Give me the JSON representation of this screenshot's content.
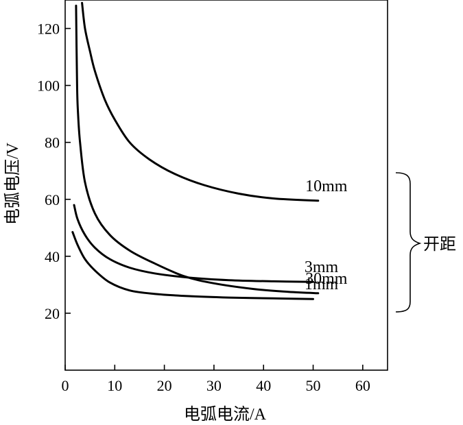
{
  "chart_data": {
    "type": "line",
    "title": "",
    "xlabel": "电弧电流/A",
    "ylabel": "电弧电压/V",
    "xlim": [
      0,
      65
    ],
    "ylim": [
      0,
      130
    ],
    "xticks": [
      0,
      10,
      20,
      30,
      40,
      50,
      60
    ],
    "yticks": [
      20,
      40,
      60,
      80,
      100,
      120
    ],
    "grid": false,
    "group_label": "开距",
    "series": [
      {
        "name": "30mm",
        "x": [
          2.2,
          2.4,
          2.6,
          3,
          4,
          6,
          9,
          13,
          18,
          24,
          30,
          38,
          45,
          51
        ],
        "y": [
          128,
          100,
          90,
          80,
          66,
          55,
          47.5,
          42,
          37.5,
          33,
          30.5,
          28.5,
          27.5,
          27
        ]
      },
      {
        "name": "10mm",
        "x": [
          3.4,
          4,
          5,
          6,
          8,
          10,
          13,
          17,
          22,
          28,
          35,
          42,
          51
        ],
        "y": [
          129,
          120,
          112,
          105,
          95,
          88,
          80,
          74,
          69,
          65,
          62,
          60.3,
          59.5
        ]
      },
      {
        "name": "3mm",
        "x": [
          1.8,
          2.5,
          4,
          6,
          9,
          13,
          18,
          25,
          33,
          42,
          50
        ],
        "y": [
          58,
          53,
          47.5,
          43,
          39,
          36,
          34,
          32.5,
          31.6,
          31.2,
          31
        ]
      },
      {
        "name": "1mm",
        "x": [
          1.5,
          2.5,
          4,
          6,
          9,
          13,
          18,
          25,
          33,
          42,
          50
        ],
        "y": [
          48.5,
          44,
          39,
          35,
          30.8,
          28,
          26.8,
          26,
          25.5,
          25.2,
          25
        ]
      }
    ]
  }
}
